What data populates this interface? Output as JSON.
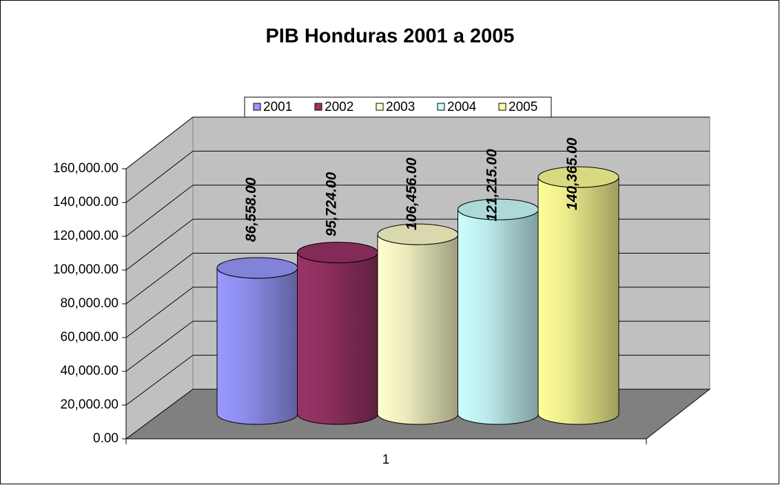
{
  "chart_data": {
    "type": "cylinder",
    "title": "PIB Honduras 2001 a 2005",
    "categories": [
      "1"
    ],
    "series": [
      {
        "name": "2001",
        "color": "#9999ff",
        "values": [
          86558
        ],
        "value_labels": [
          "86,558.00"
        ]
      },
      {
        "name": "2002",
        "color": "#993366",
        "values": [
          95724
        ],
        "value_labels": [
          "95,724.00"
        ]
      },
      {
        "name": "2003",
        "color": "#ffffcc",
        "values": [
          106456
        ],
        "value_labels": [
          "106,456.00"
        ]
      },
      {
        "name": "2004",
        "color": "#ccffff",
        "values": [
          121215
        ],
        "value_labels": [
          "121,215.00"
        ]
      },
      {
        "name": "2005",
        "color": "#ffff99",
        "values": [
          140365
        ],
        "value_labels": [
          "140,365.00"
        ]
      }
    ],
    "ylim": [
      0,
      160000
    ],
    "yticks": [
      {
        "value": 0,
        "label": "0.00"
      },
      {
        "value": 20000,
        "label": "20,000.00"
      },
      {
        "value": 40000,
        "label": "40,000.00"
      },
      {
        "value": 60000,
        "label": "60,000.00"
      },
      {
        "value": 80000,
        "label": "80,000.00"
      },
      {
        "value": 100000,
        "label": "100,000.00"
      },
      {
        "value": 120000,
        "label": "120,000.00"
      },
      {
        "value": 140000,
        "label": "140,000.00"
      },
      {
        "value": 160000,
        "label": "160,000.00"
      }
    ],
    "grid": true,
    "legend": "top"
  }
}
